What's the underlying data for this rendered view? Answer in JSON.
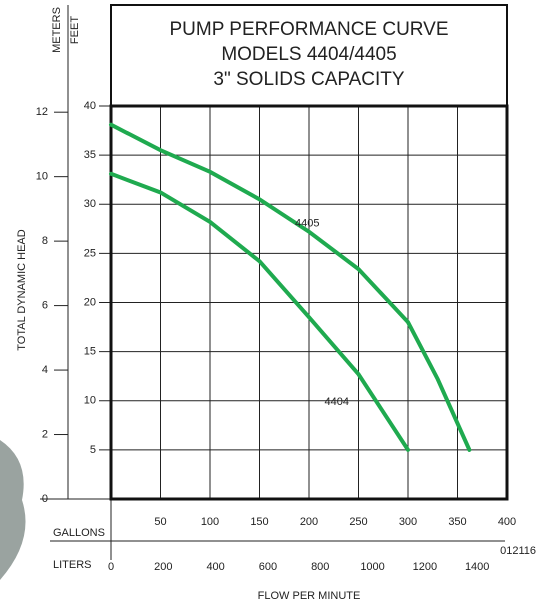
{
  "chart_data": {
    "type": "line",
    "title": [
      "PUMP PERFORMANCE CURVE",
      "MODELS 4404/4405",
      "3\" SOLIDS CAPACITY"
    ],
    "ylabel": "TOTAL DYNAMIC HEAD",
    "y_unit": "FEET",
    "y2_unit": "METERS",
    "x_unit": "GALLONS",
    "x2_unit": "LITERS",
    "xlabel": "FLOW PER MINUTE",
    "annotation": "012116",
    "xlim": [
      0,
      400
    ],
    "xticks": [
      50,
      100,
      150,
      200,
      250,
      300,
      350,
      400
    ],
    "x2lim": [
      0,
      1514
    ],
    "x2ticks": [
      0,
      200,
      400,
      600,
      800,
      1000,
      1200,
      1400
    ],
    "ylim": [
      0,
      40
    ],
    "yticks": [
      5,
      10,
      15,
      20,
      25,
      30,
      35,
      40
    ],
    "y2lim": [
      0,
      12.192
    ],
    "y2ticks": [
      0,
      2,
      4,
      6,
      8,
      10,
      12
    ],
    "grid": true,
    "series": [
      {
        "name": "4405",
        "color": "#1faa4f",
        "x": [
          0,
          50,
          100,
          150,
          200,
          250,
          300,
          330,
          362
        ],
        "values": [
          38.1,
          35.5,
          33.3,
          30.5,
          27.2,
          23.4,
          18,
          12.2,
          5
        ]
      },
      {
        "name": "4404",
        "color": "#1faa4f",
        "x": [
          0,
          50,
          100,
          150,
          200,
          250,
          300
        ],
        "values": [
          33.1,
          31.2,
          28.2,
          24.2,
          18.5,
          12.7,
          5
        ]
      }
    ]
  }
}
